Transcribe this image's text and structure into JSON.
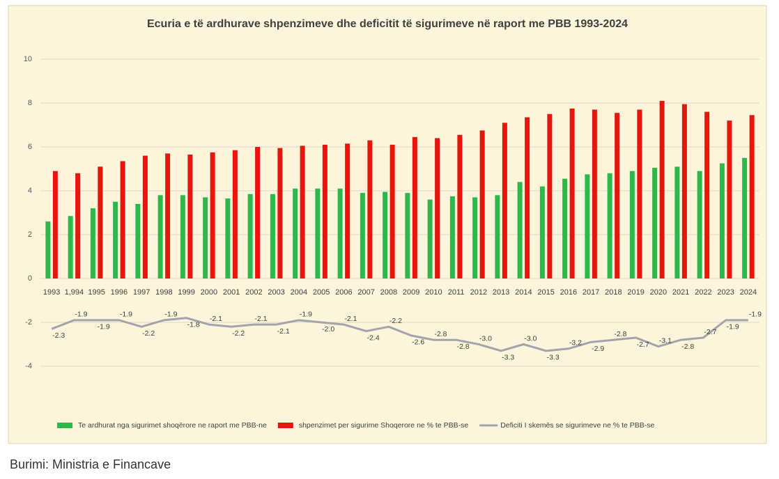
{
  "chart_data": {
    "type": "bar-line",
    "title": "Ecuria e të ardhurave shpenzimeve dhe deficitit të sigurimeve në raport me PBB 1993-2024",
    "categories": [
      "1993",
      "1,994",
      "1995",
      "1996",
      "1997",
      "1998",
      "1999",
      "2000",
      "2001",
      "2002",
      "2003",
      "2004",
      "2005",
      "2006",
      "2007",
      "2008",
      "2009",
      "2010",
      "2011",
      "2012",
      "2013",
      "2014",
      "2015",
      "2016",
      "2017",
      "2018",
      "2019",
      "2020",
      "2021",
      "2022",
      "2023",
      "2024"
    ],
    "series": [
      {
        "name": "Te ardhurat nga sigurimet shoqërore ne raport me PBB-ne",
        "type": "bar",
        "color": "#2eb84b",
        "values": [
          2.6,
          2.85,
          3.2,
          3.5,
          3.4,
          3.8,
          3.8,
          3.7,
          3.65,
          3.85,
          3.85,
          4.1,
          4.1,
          4.1,
          3.9,
          3.95,
          3.9,
          3.6,
          3.75,
          3.7,
          3.8,
          4.4,
          4.2,
          4.55,
          4.75,
          4.8,
          4.9,
          5.05,
          5.1,
          4.9,
          5.25,
          5.5
        ]
      },
      {
        "name": "shpenzimet per sigurime Shoqerore ne % te PBB-se",
        "type": "bar",
        "color": "#e8150d",
        "values": [
          4.9,
          4.8,
          5.1,
          5.35,
          5.6,
          5.7,
          5.65,
          5.75,
          5.85,
          6.0,
          5.95,
          6.05,
          6.1,
          6.15,
          6.3,
          6.1,
          6.45,
          6.4,
          6.55,
          6.75,
          7.1,
          7.35,
          7.5,
          7.75,
          7.7,
          7.55,
          7.7,
          8.1,
          7.95,
          7.6,
          7.2,
          7.45
        ]
      },
      {
        "name": "Deficiti I skemës se sigurimeve ne % te PBB-se",
        "type": "line",
        "color": "#a3a3ab",
        "values": [
          -2.3,
          -1.9,
          -1.9,
          -1.9,
          -2.2,
          -1.9,
          -1.8,
          -2.1,
          -2.2,
          -2.1,
          -2.1,
          -1.9,
          -2.0,
          -2.1,
          -2.4,
          -2.2,
          -2.6,
          -2.8,
          -2.8,
          -3.0,
          -3.3,
          -3.0,
          -3.3,
          -3.2,
          -2.9,
          -2.8,
          -2.7,
          -3.1,
          -2.8,
          -2.7,
          -1.9,
          -1.9
        ],
        "value_labels": [
          "-2.3",
          "-1.9",
          "-1.9",
          "-1.9",
          "-2.2",
          "-1.9",
          "-1.8",
          "-2.1",
          "-2.2",
          "-2.1",
          "-2.1",
          "-1.9",
          "-2.0",
          "-2.1",
          "-2.4",
          "-2.2",
          "-2.6",
          "-2.8",
          "-2.8",
          "-3.0",
          "-3.3",
          "-3.0",
          "-3.3",
          "-3.2",
          "-2.9",
          "-2.8",
          "-2.7",
          "-3.1",
          "-2.8",
          "-2.7",
          "-1.9",
          "-1.9"
        ]
      }
    ],
    "ylim": [
      -6,
      10
    ],
    "yticks": [
      -4,
      -2,
      0,
      2,
      4,
      6,
      8,
      10
    ],
    "grid": true,
    "legend": "bottom"
  },
  "source": "Burimi: Ministria e Financave"
}
